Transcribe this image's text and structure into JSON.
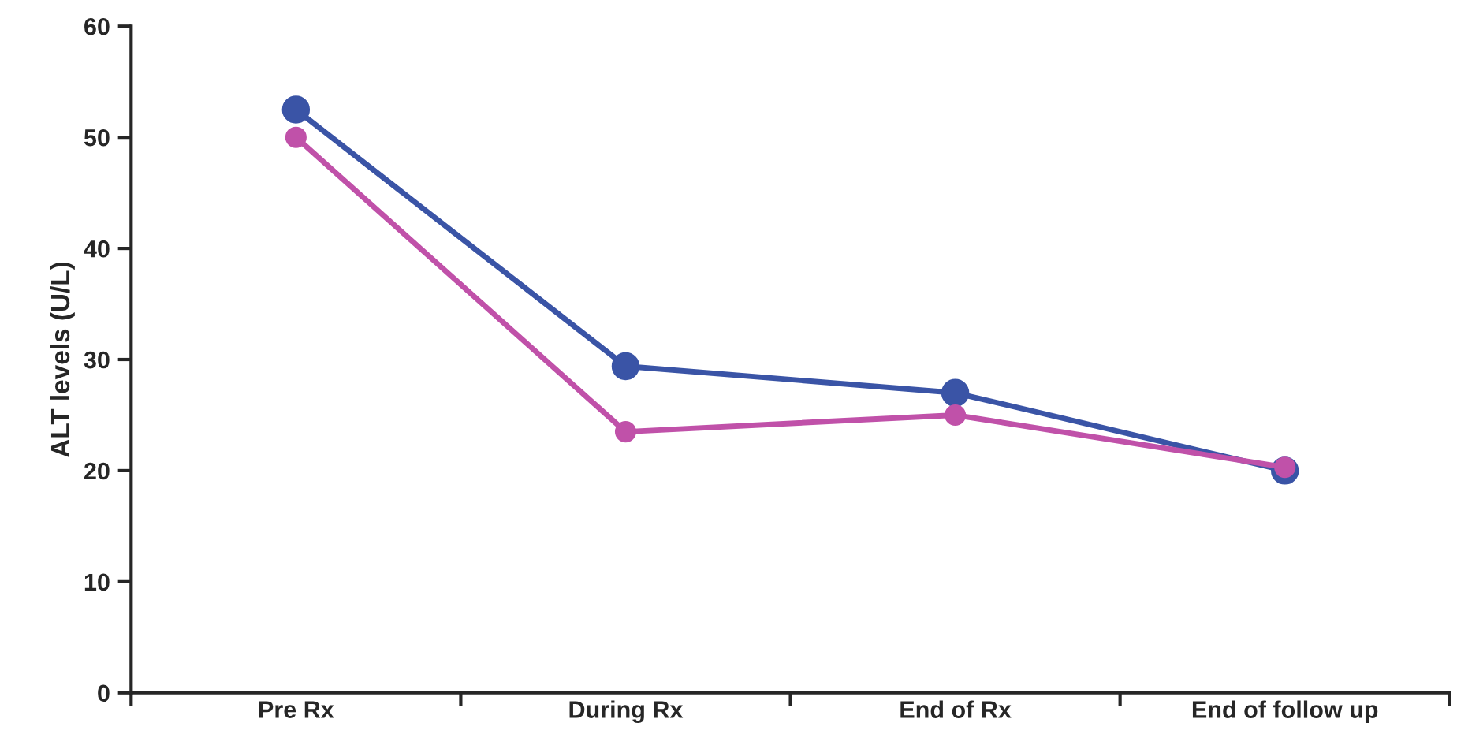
{
  "chart_data": {
    "type": "line",
    "ylabel": "ALT levels (U/L)",
    "categories": [
      "Pre Rx",
      "During Rx",
      "End of Rx",
      "End of follow up"
    ],
    "series": [
      {
        "color": "#3a54a6",
        "values": [
          52.5,
          29.4,
          27.0,
          20.0
        ]
      },
      {
        "color": "#c051a9",
        "values": [
          50.0,
          23.5,
          25.0,
          20.3
        ]
      }
    ],
    "ylim": [
      0,
      60
    ],
    "yticks": [
      0,
      10,
      20,
      30,
      40,
      50,
      60
    ],
    "grid": false,
    "legend": false,
    "marker": "circle",
    "line_style": "solid"
  }
}
